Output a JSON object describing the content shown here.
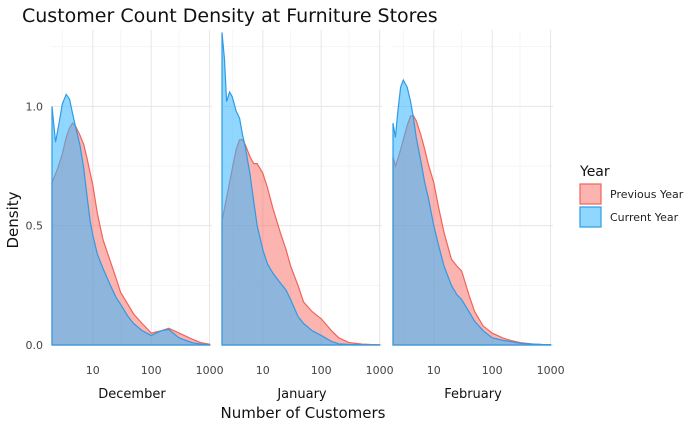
{
  "chart_data": {
    "type": "area",
    "title": "Customer Count Density at Furniture Stores",
    "xlabel": "Number of Customers",
    "ylabel": "Density",
    "x_scale": "log10",
    "xlim": [
      2,
      1100
    ],
    "ylim": [
      0,
      1.32
    ],
    "x_ticks": [
      10,
      100,
      1000
    ],
    "x_tick_labels": [
      "10",
      "100",
      "1000"
    ],
    "y_ticks": [
      0,
      0.5,
      1.0
    ],
    "y_tick_labels": [
      "0.0",
      "0.5",
      "1.0"
    ],
    "grid": true,
    "legend": {
      "title": "Year",
      "position": "right",
      "entries": [
        {
          "label": "Previous Year",
          "fill": "#F8766D",
          "stroke": "#F0645A"
        },
        {
          "label": "Current Year",
          "fill": "#35B7FF",
          "stroke": "#2E9BE6"
        }
      ]
    },
    "panels": [
      {
        "name": "December",
        "series": [
          {
            "name": "Previous Year",
            "x": [
              2,
              2.5,
              3,
              3.5,
              4,
              4.5,
              5,
              6,
              7,
              8,
              10,
              12,
              15,
              20,
              25,
              30,
              40,
              50,
              70,
              100,
              150,
              200,
              300,
              500,
              700,
              1000
            ],
            "y": [
              0.68,
              0.74,
              0.8,
              0.87,
              0.91,
              0.93,
              0.92,
              0.88,
              0.84,
              0.78,
              0.67,
              0.55,
              0.44,
              0.35,
              0.28,
              0.22,
              0.17,
              0.13,
              0.09,
              0.05,
              0.06,
              0.07,
              0.05,
              0.025,
              0.01,
              0.003
            ]
          },
          {
            "name": "Current Year",
            "x": [
              2,
              2.3,
              2.6,
              3,
              3.5,
              4,
              4.5,
              5,
              6,
              7,
              8,
              9,
              10,
              12,
              15,
              20,
              25,
              30,
              40,
              50,
              70,
              100,
              150,
              200,
              300,
              500,
              700,
              1000
            ],
            "y": [
              1.0,
              0.85,
              0.92,
              1.01,
              1.05,
              1.03,
              0.97,
              0.92,
              0.84,
              0.74,
              0.62,
              0.52,
              0.46,
              0.38,
              0.32,
              0.25,
              0.2,
              0.17,
              0.12,
              0.09,
              0.06,
              0.04,
              0.06,
              0.065,
              0.03,
              0.01,
              0.004,
              0.001
            ]
          }
        ]
      },
      {
        "name": "January",
        "series": [
          {
            "name": "Previous Year",
            "x": [
              2,
              2.5,
              3,
              3.5,
              4,
              4.5,
              5,
              6,
              7,
              8,
              10,
              12,
              15,
              20,
              25,
              30,
              40,
              50,
              70,
              100,
              150,
              200,
              300,
              500,
              700,
              1000
            ],
            "y": [
              0.52,
              0.64,
              0.74,
              0.82,
              0.86,
              0.86,
              0.84,
              0.79,
              0.76,
              0.76,
              0.72,
              0.66,
              0.57,
              0.47,
              0.4,
              0.33,
              0.25,
              0.18,
              0.14,
              0.11,
              0.06,
              0.03,
              0.01,
              0.004,
              0.002,
              0.001
            ]
          },
          {
            "name": "Current Year",
            "x": [
              2,
              2.2,
              2.4,
              2.7,
              3,
              3.5,
              4,
              4.5,
              5,
              6,
              7,
              8,
              10,
              12,
              15,
              20,
              25,
              30,
              40,
              50,
              70,
              100,
              150,
              200,
              300,
              500,
              700,
              1000
            ],
            "y": [
              1.31,
              1.2,
              1.02,
              1.06,
              1.04,
              0.98,
              0.95,
              0.88,
              0.83,
              0.72,
              0.6,
              0.5,
              0.4,
              0.34,
              0.3,
              0.26,
              0.23,
              0.19,
              0.12,
              0.09,
              0.06,
              0.04,
              0.015,
              0.005,
              0.002,
              0.001,
              0.0005,
              0.0001
            ]
          }
        ]
      },
      {
        "name": "February",
        "series": [
          {
            "name": "Previous Year",
            "x": [
              2,
              2.2,
              2.5,
              3,
              3.5,
              4,
              4.5,
              5,
              6,
              7,
              8,
              10,
              12,
              15,
              20,
              25,
              30,
              40,
              50,
              70,
              100,
              150,
              200,
              300,
              500,
              700,
              1000
            ],
            "y": [
              0.79,
              0.75,
              0.79,
              0.86,
              0.92,
              0.96,
              0.96,
              0.94,
              0.88,
              0.82,
              0.76,
              0.68,
              0.58,
              0.47,
              0.36,
              0.33,
              0.31,
              0.21,
              0.14,
              0.08,
              0.05,
              0.03,
              0.02,
              0.01,
              0.004,
              0.002,
              0.001
            ]
          },
          {
            "name": "Current Year",
            "x": [
              2,
              2.2,
              2.4,
              2.7,
              3,
              3.5,
              4,
              4.5,
              5,
              6,
              7,
              8,
              10,
              12,
              15,
              20,
              25,
              30,
              40,
              50,
              70,
              100,
              150,
              200,
              300,
              500,
              700,
              1000
            ],
            "y": [
              0.93,
              0.87,
              0.97,
              1.08,
              1.11,
              1.08,
              1.02,
              0.95,
              0.87,
              0.77,
              0.68,
              0.62,
              0.5,
              0.42,
              0.33,
              0.25,
              0.21,
              0.19,
              0.14,
              0.1,
              0.06,
              0.03,
              0.02,
              0.015,
              0.007,
              0.004,
              0.002,
              0.001
            ]
          }
        ]
      }
    ]
  }
}
